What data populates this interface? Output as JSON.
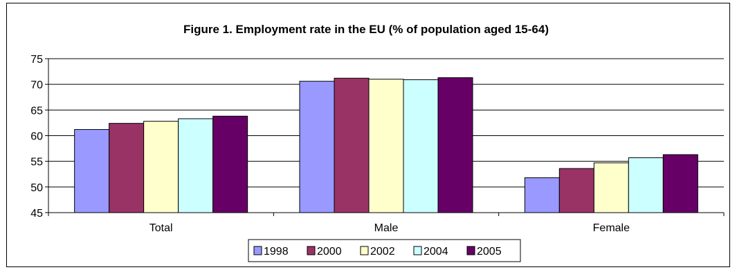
{
  "chart_data": {
    "type": "bar",
    "title": "Figure 1. Employment rate in the EU (% of population aged 15-64)",
    "xlabel": "",
    "ylabel": "",
    "categories": [
      "Total",
      "Male",
      "Female"
    ],
    "ylim": [
      45,
      75
    ],
    "yticks": [
      "45",
      "50",
      "55",
      "60",
      "65",
      "70",
      "75"
    ],
    "grid": true,
    "legend_position": "bottom",
    "series": [
      {
        "name": "1998",
        "color": "#9999ff",
        "values": [
          61.2,
          70.6,
          51.8
        ]
      },
      {
        "name": "2000",
        "color": "#993366",
        "values": [
          62.4,
          71.2,
          53.6
        ]
      },
      {
        "name": "2002",
        "color": "#ffffcc",
        "values": [
          62.8,
          71.0,
          54.7
        ]
      },
      {
        "name": "2004",
        "color": "#ccffff",
        "values": [
          63.3,
          70.9,
          55.7
        ]
      },
      {
        "name": "2005",
        "color": "#660066",
        "values": [
          63.8,
          71.3,
          56.3
        ]
      }
    ]
  }
}
